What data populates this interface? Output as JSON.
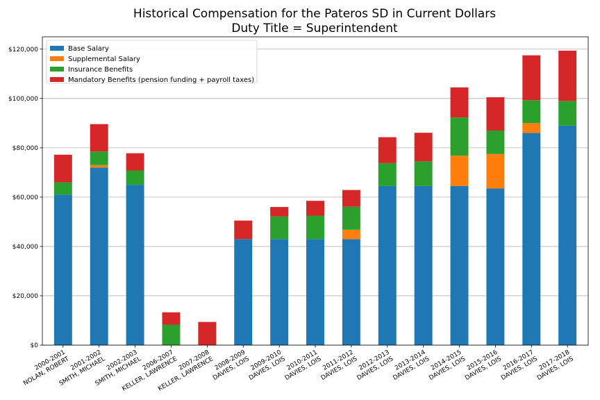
{
  "chart_data": {
    "type": "bar",
    "stacked": true,
    "title": "Historical Compensation for the Pateros SD in Current Dollars",
    "subtitle": "Duty Title = Superintendent",
    "xlabel": "",
    "ylabel": "",
    "ylim": [
      0,
      125000
    ],
    "yticks": [
      0,
      20000,
      40000,
      60000,
      80000,
      100000,
      120000
    ],
    "ytick_labels": [
      "$0",
      "$20,000",
      "$40,000",
      "$60,000",
      "$80,000",
      "$100,000",
      "$120,000"
    ],
    "grid": "horizontal",
    "legend_position": "top-left",
    "categories": [
      [
        "2000-2001",
        "NOLAN, ROBERT"
      ],
      [
        "2001-2002",
        "SMITH, MICHAEL"
      ],
      [
        "2002-2003",
        "SMITH, MICHAEL"
      ],
      [
        "2006-2007",
        "KELLER, LAWRENCE"
      ],
      [
        "2007-2008",
        "KELLER, LAWRENCE"
      ],
      [
        "2008-2009",
        "DAVIES, LOIS"
      ],
      [
        "2009-2010",
        "DAVIES, LOIS"
      ],
      [
        "2010-2011",
        "DAVIES, LOIS"
      ],
      [
        "2011-2012",
        "DAVIES, LOIS"
      ],
      [
        "2012-2013",
        "DAVIES, LOIS"
      ],
      [
        "2013-2014",
        "DAVIES, LOIS"
      ],
      [
        "2014-2015",
        "DAVIES, LOIS"
      ],
      [
        "2015-2016",
        "DAVIES, LOIS"
      ],
      [
        "2016-2017",
        "DAVIES, LOIS"
      ],
      [
        "2017-2018",
        "DAVIES, LOIS"
      ]
    ],
    "series": [
      {
        "name": "Base Salary",
        "color": "#1f77b4",
        "values": [
          61000,
          72000,
          65000,
          0,
          0,
          43000,
          43000,
          43000,
          43000,
          64500,
          64500,
          64500,
          63500,
          86000,
          89000
        ]
      },
      {
        "name": "Supplemental Salary",
        "color": "#ff7f0e",
        "values": [
          0,
          1000,
          0,
          0,
          0,
          0,
          0,
          0,
          3800,
          0,
          0,
          12300,
          14000,
          4000,
          0
        ]
      },
      {
        "name": "Insurance Benefits",
        "color": "#2ca02c",
        "values": [
          5000,
          5500,
          5800,
          8300,
          0,
          0,
          9200,
          9500,
          9300,
          9300,
          10000,
          15500,
          9500,
          9300,
          10000
        ]
      },
      {
        "name": "Mandatory Benefits (pension funding + payroll taxes)",
        "color": "#d62728",
        "values": [
          11200,
          11100,
          7000,
          5000,
          9400,
          7500,
          3800,
          6000,
          6800,
          10500,
          11600,
          12200,
          13500,
          18200,
          20400
        ]
      }
    ]
  }
}
